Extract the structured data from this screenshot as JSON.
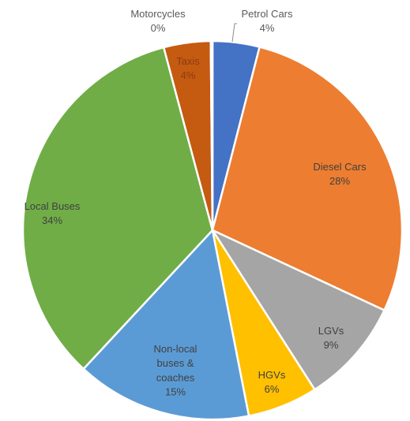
{
  "chart_data": {
    "type": "pie",
    "start_angle_deg": 0,
    "direction": "clockwise",
    "slices": [
      {
        "name": "Petrol Cars",
        "value": 4,
        "label": "4%",
        "color": "#4472C4"
      },
      {
        "name": "Diesel Cars",
        "value": 28,
        "label": "28%",
        "color": "#ED7D31"
      },
      {
        "name": "LGVs",
        "value": 9,
        "label": "9%",
        "color": "#A5A5A5"
      },
      {
        "name": "HGVs",
        "value": 6,
        "label": "6%",
        "color": "#FFC000"
      },
      {
        "name": "Non-local buses & coaches",
        "value": 15,
        "label": "15%",
        "color": "#5B9BD5",
        "name_lines": [
          "Non-local",
          "buses &",
          "coaches"
        ]
      },
      {
        "name": "Local Buses",
        "value": 34,
        "label": "34%",
        "color": "#70AD47"
      },
      {
        "name": "Taxis",
        "value": 4,
        "label": "4%",
        "color": "#C55A11"
      },
      {
        "name": "Motorcycles",
        "value": 0.15,
        "label": "0%",
        "color": "#264478"
      }
    ]
  }
}
